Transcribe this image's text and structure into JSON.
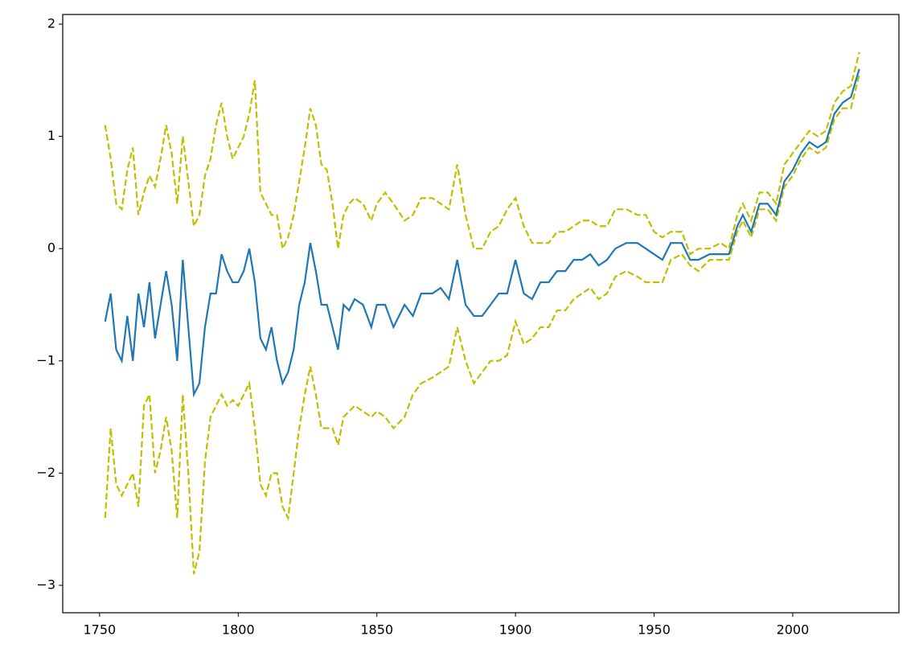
{
  "chart_data": {
    "type": "line",
    "x": [
      1752,
      1754,
      1756,
      1758,
      1760,
      1762,
      1764,
      1766,
      1768,
      1770,
      1772,
      1774,
      1776,
      1778,
      1780,
      1782,
      1784,
      1786,
      1788,
      1790,
      1792,
      1794,
      1796,
      1798,
      1800,
      1802,
      1804,
      1806,
      1808,
      1810,
      1812,
      1814,
      1816,
      1818,
      1820,
      1822,
      1824,
      1826,
      1828,
      1830,
      1832,
      1834,
      1836,
      1838,
      1840,
      1842,
      1845,
      1848,
      1850,
      1853,
      1856,
      1860,
      1863,
      1866,
      1870,
      1873,
      1876,
      1879,
      1882,
      1885,
      1888,
      1891,
      1894,
      1897,
      1900,
      1903,
      1906,
      1909,
      1912,
      1915,
      1918,
      1921,
      1924,
      1927,
      1930,
      1933,
      1936,
      1940,
      1944,
      1947,
      1950,
      1953,
      1956,
      1960,
      1963,
      1966,
      1970,
      1974,
      1977,
      1980,
      1982,
      1985,
      1988,
      1991,
      1994,
      1997,
      2000,
      2003,
      2006,
      2009,
      2012,
      2015,
      2018,
      2021,
      2024
    ],
    "series": [
      {
        "color": "#bfbf00",
        "linestyle": "dashed",
        "values": [
          1.1,
          0.8,
          0.4,
          0.35,
          0.7,
          0.9,
          0.3,
          0.5,
          0.65,
          0.55,
          0.8,
          1.1,
          0.85,
          0.4,
          1.0,
          0.6,
          0.2,
          0.3,
          0.65,
          0.8,
          1.1,
          1.3,
          1.0,
          0.8,
          0.9,
          1.0,
          1.2,
          1.5,
          0.5,
          0.4,
          0.3,
          0.3,
          0.0,
          0.1,
          0.3,
          0.6,
          0.9,
          1.25,
          1.1,
          0.75,
          0.7,
          0.4,
          0.0,
          0.3,
          0.4,
          0.45,
          0.4,
          0.25,
          0.4,
          0.5,
          0.4,
          0.25,
          0.3,
          0.45,
          0.45,
          0.4,
          0.35,
          0.75,
          0.3,
          0.0,
          0.0,
          0.15,
          0.2,
          0.35,
          0.45,
          0.2,
          0.05,
          0.05,
          0.05,
          0.15,
          0.15,
          0.2,
          0.25,
          0.25,
          0.2,
          0.2,
          0.35,
          0.35,
          0.3,
          0.3,
          0.15,
          0.1,
          0.15,
          0.15,
          -0.05,
          0.0,
          0.0,
          0.05,
          0.0,
          0.3,
          0.4,
          0.25,
          0.5,
          0.5,
          0.4,
          0.75,
          0.85,
          0.95,
          1.05,
          1.0,
          1.05,
          1.3,
          1.4,
          1.45,
          1.75
        ]
      },
      {
        "color": "#bfbf00",
        "linestyle": "dashed",
        "values": [
          -2.4,
          -1.6,
          -2.1,
          -2.2,
          -2.1,
          -2.0,
          -2.3,
          -1.4,
          -1.3,
          -2.0,
          -1.8,
          -1.5,
          -1.8,
          -2.4,
          -1.3,
          -2.0,
          -2.9,
          -2.7,
          -1.9,
          -1.5,
          -1.4,
          -1.3,
          -1.4,
          -1.35,
          -1.4,
          -1.3,
          -1.2,
          -1.6,
          -2.1,
          -2.2,
          -2.0,
          -2.0,
          -2.3,
          -2.4,
          -2.0,
          -1.6,
          -1.3,
          -1.05,
          -1.3,
          -1.6,
          -1.6,
          -1.6,
          -1.75,
          -1.5,
          -1.45,
          -1.4,
          -1.45,
          -1.5,
          -1.45,
          -1.5,
          -1.6,
          -1.5,
          -1.3,
          -1.2,
          -1.15,
          -1.1,
          -1.05,
          -0.7,
          -1.0,
          -1.2,
          -1.1,
          -1.0,
          -1.0,
          -0.95,
          -0.65,
          -0.85,
          -0.8,
          -0.7,
          -0.7,
          -0.55,
          -0.55,
          -0.45,
          -0.4,
          -0.35,
          -0.45,
          -0.4,
          -0.25,
          -0.2,
          -0.25,
          -0.3,
          -0.3,
          -0.3,
          -0.1,
          -0.05,
          -0.15,
          -0.2,
          -0.1,
          -0.1,
          -0.1,
          0.15,
          0.25,
          0.1,
          0.35,
          0.35,
          0.25,
          0.55,
          0.65,
          0.8,
          0.9,
          0.85,
          0.9,
          1.15,
          1.25,
          1.25,
          1.55
        ]
      },
      {
        "color": "#1f77b4",
        "linestyle": "solid",
        "values": [
          -0.65,
          -0.4,
          -0.9,
          -1.0,
          -0.6,
          -1.0,
          -0.4,
          -0.7,
          -0.3,
          -0.8,
          -0.5,
          -0.2,
          -0.5,
          -1.0,
          -0.1,
          -0.7,
          -1.3,
          -1.2,
          -0.7,
          -0.4,
          -0.4,
          -0.05,
          -0.2,
          -0.3,
          -0.3,
          -0.2,
          0.0,
          -0.3,
          -0.8,
          -0.9,
          -0.7,
          -1.0,
          -1.2,
          -1.1,
          -0.9,
          -0.5,
          -0.3,
          0.05,
          -0.2,
          -0.5,
          -0.5,
          -0.7,
          -0.9,
          -0.5,
          -0.55,
          -0.45,
          -0.5,
          -0.7,
          -0.5,
          -0.5,
          -0.7,
          -0.5,
          -0.6,
          -0.4,
          -0.4,
          -0.35,
          -0.45,
          -0.1,
          -0.5,
          -0.6,
          -0.6,
          -0.5,
          -0.4,
          -0.4,
          -0.1,
          -0.4,
          -0.45,
          -0.3,
          -0.3,
          -0.2,
          -0.2,
          -0.1,
          -0.1,
          -0.05,
          -0.15,
          -0.1,
          0.0,
          0.05,
          0.05,
          0.0,
          -0.05,
          -0.1,
          0.05,
          0.05,
          -0.1,
          -0.1,
          -0.05,
          -0.05,
          -0.05,
          0.2,
          0.3,
          0.15,
          0.4,
          0.4,
          0.3,
          0.6,
          0.7,
          0.85,
          0.95,
          0.9,
          0.95,
          1.2,
          1.3,
          1.35,
          1.6
        ]
      }
    ],
    "xlim": [
      1736.7,
      2038.3
    ],
    "ylim": [
      -3.244,
      2.086
    ],
    "xticks": [
      1750,
      1800,
      1850,
      1900,
      1950,
      2000
    ],
    "yticks": [
      {
        "value": -3,
        "label": "−3"
      },
      {
        "value": -2,
        "label": "−2"
      },
      {
        "value": -1,
        "label": "−1"
      },
      0,
      1,
      2
    ]
  }
}
